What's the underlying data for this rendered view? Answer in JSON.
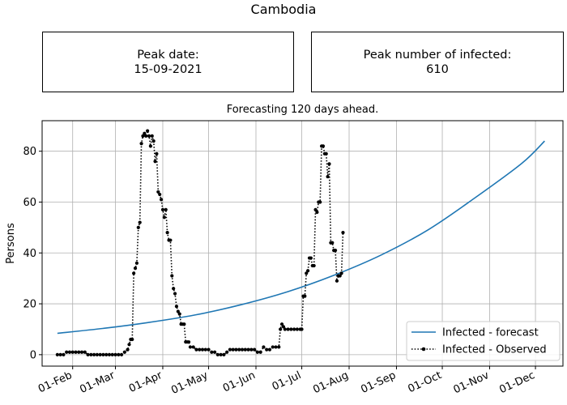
{
  "page": {
    "suptitle": "Cambodia",
    "peak_date_label": "Peak date:",
    "peak_date_value": "15-09-2021",
    "peak_infected_label": "Peak number of infected:",
    "peak_infected_value": "610",
    "colors": {
      "forecast": "#1f77b4",
      "observed": "#000000",
      "grid": "#b0b0b0"
    }
  },
  "chart_data": {
    "type": "line",
    "title": "Forecasting 120 days ahead.",
    "ylabel": "Persons",
    "xlabel": "",
    "x_range": [
      "2021-01-12",
      "2021-12-19"
    ],
    "ylim": [
      -4.5,
      92
    ],
    "grid": true,
    "legend_position": "bottom-right",
    "x_ticks": [
      {
        "date": "2021-02-01",
        "label": "01-Feb"
      },
      {
        "date": "2021-03-01",
        "label": "01-Mar"
      },
      {
        "date": "2021-04-01",
        "label": "01-Apr"
      },
      {
        "date": "2021-05-01",
        "label": "01-May"
      },
      {
        "date": "2021-06-01",
        "label": "01-Jun"
      },
      {
        "date": "2021-07-01",
        "label": "01-Jul"
      },
      {
        "date": "2021-08-01",
        "label": "01-Aug"
      },
      {
        "date": "2021-09-01",
        "label": "01-Sep"
      },
      {
        "date": "2021-10-01",
        "label": "01-Oct"
      },
      {
        "date": "2021-11-01",
        "label": "01-Nov"
      },
      {
        "date": "2021-12-01",
        "label": "01-Dec"
      }
    ],
    "y_ticks": [
      0,
      20,
      40,
      60,
      80
    ],
    "series": [
      {
        "name": "Infected - forecast",
        "style": "solid",
        "points": [
          [
            "2021-01-22",
            8.4
          ],
          [
            "2021-02-22",
            10.4
          ],
          [
            "2021-03-22",
            12.6
          ],
          [
            "2021-04-22",
            15.6
          ],
          [
            "2021-05-22",
            19.6
          ],
          [
            "2021-06-22",
            24.8
          ],
          [
            "2021-07-22",
            31.2
          ],
          [
            "2021-08-22",
            39.2
          ],
          [
            "2021-09-22",
            49.2
          ],
          [
            "2021-10-22",
            61.5
          ],
          [
            "2021-11-22",
            75.2
          ],
          [
            "2021-12-07",
            84.0
          ]
        ]
      },
      {
        "name": "Infected - Observed",
        "style": "dotted-markers",
        "points": [
          [
            "2021-01-22",
            0
          ],
          [
            "2021-01-24",
            0
          ],
          [
            "2021-01-26",
            0
          ],
          [
            "2021-01-28",
            1
          ],
          [
            "2021-01-30",
            1
          ],
          [
            "2021-02-01",
            1
          ],
          [
            "2021-02-03",
            1
          ],
          [
            "2021-02-05",
            1
          ],
          [
            "2021-02-07",
            1
          ],
          [
            "2021-02-09",
            1
          ],
          [
            "2021-02-11",
            0
          ],
          [
            "2021-02-13",
            0
          ],
          [
            "2021-02-15",
            0
          ],
          [
            "2021-02-17",
            0
          ],
          [
            "2021-02-19",
            0
          ],
          [
            "2021-02-21",
            0
          ],
          [
            "2021-02-23",
            0
          ],
          [
            "2021-02-25",
            0
          ],
          [
            "2021-02-27",
            0
          ],
          [
            "2021-03-01",
            0
          ],
          [
            "2021-03-03",
            0
          ],
          [
            "2021-03-05",
            0
          ],
          [
            "2021-03-07",
            1
          ],
          [
            "2021-03-09",
            2
          ],
          [
            "2021-03-10",
            4
          ],
          [
            "2021-03-11",
            6
          ],
          [
            "2021-03-12",
            6
          ],
          [
            "2021-03-13",
            32
          ],
          [
            "2021-03-14",
            34
          ],
          [
            "2021-03-15",
            36
          ],
          [
            "2021-03-16",
            50
          ],
          [
            "2021-03-17",
            52
          ],
          [
            "2021-03-18",
            83
          ],
          [
            "2021-03-19",
            86
          ],
          [
            "2021-03-20",
            87
          ],
          [
            "2021-03-21",
            86
          ],
          [
            "2021-03-22",
            88
          ],
          [
            "2021-03-23",
            86
          ],
          [
            "2021-03-24",
            82
          ],
          [
            "2021-03-25",
            86
          ],
          [
            "2021-03-26",
            84
          ],
          [
            "2021-03-27",
            76
          ],
          [
            "2021-03-28",
            79
          ],
          [
            "2021-03-29",
            64
          ],
          [
            "2021-03-30",
            63
          ],
          [
            "2021-03-31",
            61
          ],
          [
            "2021-04-01",
            57
          ],
          [
            "2021-04-02",
            54
          ],
          [
            "2021-04-03",
            57
          ],
          [
            "2021-04-04",
            48
          ],
          [
            "2021-04-05",
            45
          ],
          [
            "2021-04-06",
            45
          ],
          [
            "2021-04-07",
            31
          ],
          [
            "2021-04-08",
            26
          ],
          [
            "2021-04-09",
            24
          ],
          [
            "2021-04-10",
            19
          ],
          [
            "2021-04-11",
            17
          ],
          [
            "2021-04-12",
            16
          ],
          [
            "2021-04-13",
            12
          ],
          [
            "2021-04-14",
            12
          ],
          [
            "2021-04-15",
            12
          ],
          [
            "2021-04-16",
            5
          ],
          [
            "2021-04-17",
            5
          ],
          [
            "2021-04-18",
            5
          ],
          [
            "2021-04-19",
            3
          ],
          [
            "2021-04-21",
            3
          ],
          [
            "2021-04-23",
            2
          ],
          [
            "2021-04-25",
            2
          ],
          [
            "2021-04-27",
            2
          ],
          [
            "2021-04-29",
            2
          ],
          [
            "2021-05-01",
            2
          ],
          [
            "2021-05-03",
            1
          ],
          [
            "2021-05-05",
            1
          ],
          [
            "2021-05-07",
            0
          ],
          [
            "2021-05-09",
            0
          ],
          [
            "2021-05-11",
            0
          ],
          [
            "2021-05-13",
            1
          ],
          [
            "2021-05-15",
            2
          ],
          [
            "2021-05-17",
            2
          ],
          [
            "2021-05-19",
            2
          ],
          [
            "2021-05-21",
            2
          ],
          [
            "2021-05-23",
            2
          ],
          [
            "2021-05-25",
            2
          ],
          [
            "2021-05-27",
            2
          ],
          [
            "2021-05-29",
            2
          ],
          [
            "2021-05-31",
            2
          ],
          [
            "2021-06-02",
            1
          ],
          [
            "2021-06-04",
            1
          ],
          [
            "2021-06-06",
            3
          ],
          [
            "2021-06-08",
            2
          ],
          [
            "2021-06-10",
            2
          ],
          [
            "2021-06-12",
            3
          ],
          [
            "2021-06-14",
            3
          ],
          [
            "2021-06-16",
            3
          ],
          [
            "2021-06-17",
            10
          ],
          [
            "2021-06-18",
            12
          ],
          [
            "2021-06-19",
            11
          ],
          [
            "2021-06-20",
            10
          ],
          [
            "2021-06-22",
            10
          ],
          [
            "2021-06-24",
            10
          ],
          [
            "2021-06-26",
            10
          ],
          [
            "2021-06-28",
            10
          ],
          [
            "2021-06-30",
            10
          ],
          [
            "2021-07-01",
            10
          ],
          [
            "2021-07-02",
            23
          ],
          [
            "2021-07-03",
            23
          ],
          [
            "2021-07-04",
            32
          ],
          [
            "2021-07-05",
            33
          ],
          [
            "2021-07-06",
            38
          ],
          [
            "2021-07-07",
            38
          ],
          [
            "2021-07-08",
            35
          ],
          [
            "2021-07-09",
            35
          ],
          [
            "2021-07-10",
            57
          ],
          [
            "2021-07-11",
            56
          ],
          [
            "2021-07-12",
            60
          ],
          [
            "2021-07-13",
            60
          ],
          [
            "2021-07-14",
            82
          ],
          [
            "2021-07-15",
            82
          ],
          [
            "2021-07-16",
            79
          ],
          [
            "2021-07-17",
            79
          ],
          [
            "2021-07-18",
            70
          ],
          [
            "2021-07-19",
            75
          ],
          [
            "2021-07-20",
            44
          ],
          [
            "2021-07-21",
            44
          ],
          [
            "2021-07-22",
            41
          ],
          [
            "2021-07-23",
            41
          ],
          [
            "2021-07-24",
            29
          ],
          [
            "2021-07-25",
            31
          ],
          [
            "2021-07-26",
            31
          ],
          [
            "2021-07-27",
            32
          ],
          [
            "2021-07-28",
            48
          ]
        ]
      }
    ]
  }
}
